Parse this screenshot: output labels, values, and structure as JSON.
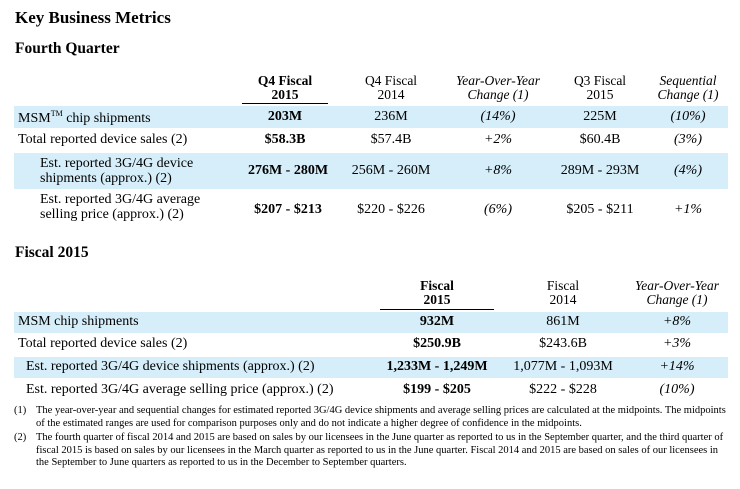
{
  "title": "Key Business Metrics",
  "q4": {
    "section_title": "Fourth Quarter",
    "headers": [
      {
        "line1": "Q4 Fiscal",
        "line2": "2015"
      },
      {
        "line1": "Q4 Fiscal",
        "line2": "2014"
      },
      {
        "line1": "Year-Over-Year",
        "line2": "Change (1)"
      },
      {
        "line1": "Q3 Fiscal",
        "line2": "2015"
      },
      {
        "line1": "Sequential",
        "line2": "Change (1)"
      }
    ],
    "rows": [
      {
        "label_pre": "MSM",
        "label_sup": "TM",
        "label_post": " chip shipments",
        "values": [
          "203M",
          "236M",
          "(14%)",
          "225M",
          "(10%)"
        ]
      },
      {
        "label": "Total reported device sales (2)",
        "values": [
          "$58.3B",
          "$57.4B",
          "+2%",
          "$60.4B",
          "(3%)"
        ]
      },
      {
        "label_line1": "Est. reported 3G/4G device",
        "label_line2": "shipments (approx.) (2)",
        "values": [
          "276M - 280M",
          "256M - 260M",
          "+8%",
          "289M - 293M",
          "(4%)"
        ]
      },
      {
        "label_line1": "Est. reported 3G/4G average",
        "label_line2": "selling price (approx.) (2)",
        "values": [
          "$207 - $213",
          "$220 - $226",
          "(6%)",
          "$205 - $211",
          "+1%"
        ]
      }
    ]
  },
  "fy": {
    "section_title": "Fiscal 2015",
    "headers": [
      {
        "line1": "Fiscal",
        "line2": "2015"
      },
      {
        "line1": "Fiscal",
        "line2": "2014"
      },
      {
        "line1": "Year-Over-Year",
        "line2": "Change (1)"
      }
    ],
    "rows": [
      {
        "label": "MSM chip shipments",
        "values": [
          "932M",
          "861M",
          "+8%"
        ]
      },
      {
        "label": "Total reported device sales (2)",
        "values": [
          "$250.9B",
          "$243.6B",
          "+3%"
        ]
      },
      {
        "label": "Est. reported 3G/4G device shipments (approx.) (2)",
        "values": [
          "1,233M - 1,249M",
          "1,077M - 1,093M",
          "+14%"
        ]
      },
      {
        "label": "Est. reported 3G/4G average selling price (approx.) (2)",
        "values": [
          "$199 - $205",
          "$222 - $228",
          "(10%)"
        ]
      }
    ]
  },
  "footnotes": [
    {
      "num": "(1)",
      "text": "The year-over-year and sequential changes for estimated reported 3G/4G device shipments and average selling prices are calculated at the midpoints. The midpoints of the estimated ranges are used for comparison purposes only and do not indicate a higher degree of confidence in the midpoints."
    },
    {
      "num": "(2)",
      "text": "The fourth quarter of fiscal 2014 and 2015 are based on sales by our licensees in the June quarter as reported to us in the September quarter, and the third quarter of fiscal 2015 is based on sales by our licensees in the March quarter as reported to us in the June quarter. Fiscal 2014 and 2015 are based on sales of our licensees in the September to June quarters as reported to us in the December to September quarters."
    }
  ],
  "colors": {
    "row_highlight": "#d5eef9"
  }
}
